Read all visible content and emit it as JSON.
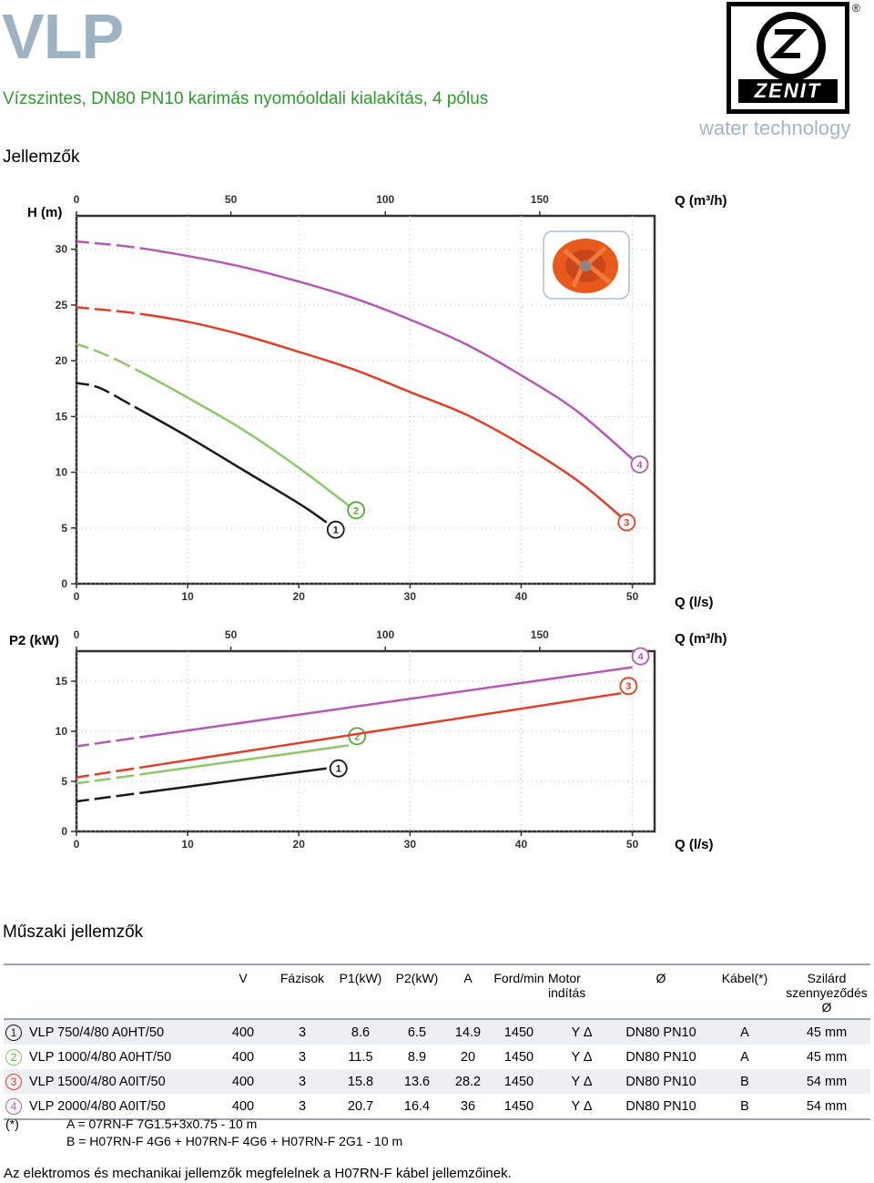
{
  "header": {
    "title": "VLP",
    "subtitle": "Vízszintes, DN80 PN10 karimás nyomóoldali kialakítás, 4 pólus",
    "section_features": "Jellemzők",
    "section_specs": "Műszaki jellemzők"
  },
  "logo": {
    "brand": "ZENIT",
    "reg": "®",
    "tagline": "water technology"
  },
  "colors": {
    "curve1": "#1a1a1a",
    "curve2": "#8dc86a",
    "curve3": "#e0402a",
    "curve4": "#b45ab4",
    "title": "#9db3c4",
    "subtitle": "#2e9a2e"
  },
  "chart_data": [
    {
      "type": "line",
      "ylabel": "H (m)",
      "xlabel": "Q (l/s)",
      "x2label": "Q (m³/h)",
      "xlim": [
        0,
        52
      ],
      "ylim": [
        0,
        33
      ],
      "xticks": [
        "0",
        "10",
        "20",
        "30",
        "40",
        "50"
      ],
      "x2ticks": [
        "0",
        "50",
        "100",
        "150"
      ],
      "yticks": [
        "0",
        "5",
        "10",
        "15",
        "20",
        "25",
        "30"
      ],
      "series": [
        {
          "name": "1",
          "color": "#1a1a1a",
          "x": [
            0,
            2,
            5,
            10,
            15,
            20,
            22.5
          ],
          "y": [
            18,
            17.6,
            16,
            13.2,
            10.2,
            7.2,
            5.5
          ]
        },
        {
          "name": "2",
          "color": "#8dc86a",
          "x": [
            0,
            2,
            5,
            10,
            15,
            20,
            24.5
          ],
          "y": [
            21.5,
            20.8,
            19.4,
            16.7,
            13.8,
            10.4,
            7
          ]
        },
        {
          "name": "3",
          "color": "#e0402a",
          "x": [
            0,
            5,
            10,
            15,
            20,
            25,
            30,
            35,
            40,
            45,
            49
          ],
          "y": [
            24.8,
            24.3,
            23.5,
            22.3,
            20.8,
            19.2,
            17.2,
            15.2,
            12.5,
            9.3,
            6
          ]
        },
        {
          "name": "4",
          "color": "#b45ab4",
          "x": [
            0,
            5,
            10,
            15,
            20,
            25,
            30,
            35,
            40,
            45,
            50
          ],
          "y": [
            30.7,
            30.2,
            29.4,
            28.4,
            27.1,
            25.6,
            23.7,
            21.5,
            18.7,
            15.5,
            11.2
          ]
        }
      ]
    },
    {
      "type": "line",
      "ylabel": "P2 (kW)",
      "xlabel": "Q (l/s)",
      "x2label": "Q (m³/h)",
      "xlim": [
        0,
        52
      ],
      "ylim": [
        0,
        18
      ],
      "xticks": [
        "0",
        "10",
        "20",
        "30",
        "40",
        "50"
      ],
      "x2ticks": [
        "0",
        "50",
        "100",
        "150"
      ],
      "yticks": [
        "0",
        "5",
        "10",
        "15"
      ],
      "series": [
        {
          "name": "1",
          "color": "#1a1a1a",
          "x": [
            0,
            22.5
          ],
          "y": [
            3,
            6.3
          ]
        },
        {
          "name": "2",
          "color": "#8dc86a",
          "x": [
            0,
            24.5
          ],
          "y": [
            4.8,
            8.6
          ]
        },
        {
          "name": "3",
          "color": "#e0402a",
          "x": [
            0,
            49
          ],
          "y": [
            5.4,
            13.8
          ]
        },
        {
          "name": "4",
          "color": "#b45ab4",
          "x": [
            0,
            50
          ],
          "y": [
            8.5,
            16.4
          ]
        }
      ]
    }
  ],
  "table": {
    "headers": [
      "",
      "V",
      "Fázisok",
      "P1(kW)",
      "P2(kW)",
      "A",
      "Ford/min",
      "Motor\nindítás",
      "Ø",
      "Kábel(*)",
      "Szilárd\nszennyeződés Ø"
    ],
    "rows": [
      {
        "num": "1",
        "model": "VLP 750/4/80 A0HT/50",
        "v": "400",
        "phases": "3",
        "p1": "8.6",
        "p2": "6.5",
        "a": "14.9",
        "rpm": "1450",
        "start": "Y Δ",
        "dia": "DN80 PN10",
        "cable": "A",
        "solid": "45 mm"
      },
      {
        "num": "2",
        "model": "VLP 1000/4/80 A0HT/50",
        "v": "400",
        "phases": "3",
        "p1": "11.5",
        "p2": "8.9",
        "a": "20",
        "rpm": "1450",
        "start": "Y Δ",
        "dia": "DN80 PN10",
        "cable": "A",
        "solid": "45 mm"
      },
      {
        "num": "3",
        "model": "VLP 1500/4/80 A0IT/50",
        "v": "400",
        "phases": "3",
        "p1": "15.8",
        "p2": "13.6",
        "a": "28.2",
        "rpm": "1450",
        "start": "Y Δ",
        "dia": "DN80 PN10",
        "cable": "B",
        "solid": "54 mm"
      },
      {
        "num": "4",
        "model": "VLP 2000/4/80 A0IT/50",
        "v": "400",
        "phases": "3",
        "p1": "20.7",
        "p2": "16.4",
        "a": "36",
        "rpm": "1450",
        "start": "Y Δ",
        "dia": "DN80 PN10",
        "cable": "B",
        "solid": "54 mm"
      }
    ]
  },
  "footnotes": {
    "star": "(*)",
    "a": "A = 07RN-F 7G1.5+3x0.75 - 10 m",
    "b": "B = H07RN-F 4G6 + H07RN-F 4G6 + H07RN-F 2G1 - 10 m",
    "note": "Az elektromos és mechanikai jellemzők megfelelnek a H07RN-F kábel jellemzőinek."
  }
}
